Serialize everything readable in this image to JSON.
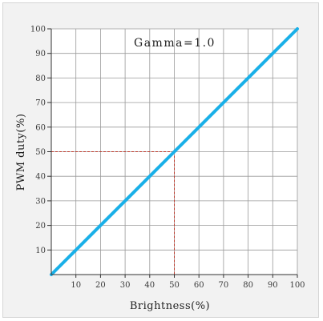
{
  "chart_data": {
    "type": "line",
    "x": [
      0,
      10,
      20,
      30,
      40,
      50,
      60,
      70,
      80,
      90,
      100
    ],
    "series": [
      {
        "values": [
          0,
          10,
          20,
          30,
          40,
          50,
          60,
          70,
          80,
          90,
          100
        ],
        "color": "#1ab0e8"
      }
    ],
    "xlabel": "Brightness(%)",
    "ylabel": "PWM duty(%)",
    "xlim": [
      0,
      100
    ],
    "ylim": [
      0,
      100
    ],
    "xticks": [
      "10",
      "20",
      "30",
      "40",
      "50",
      "60",
      "70",
      "80",
      "90",
      "100"
    ],
    "yticks": [
      "10",
      "20",
      "30",
      "40",
      "50",
      "60",
      "70",
      "80",
      "90",
      "100"
    ],
    "grid": true,
    "annotation": "Gamma=1.0",
    "reference_point": {
      "x": 50,
      "y": 50,
      "color": "#c0392b"
    }
  }
}
